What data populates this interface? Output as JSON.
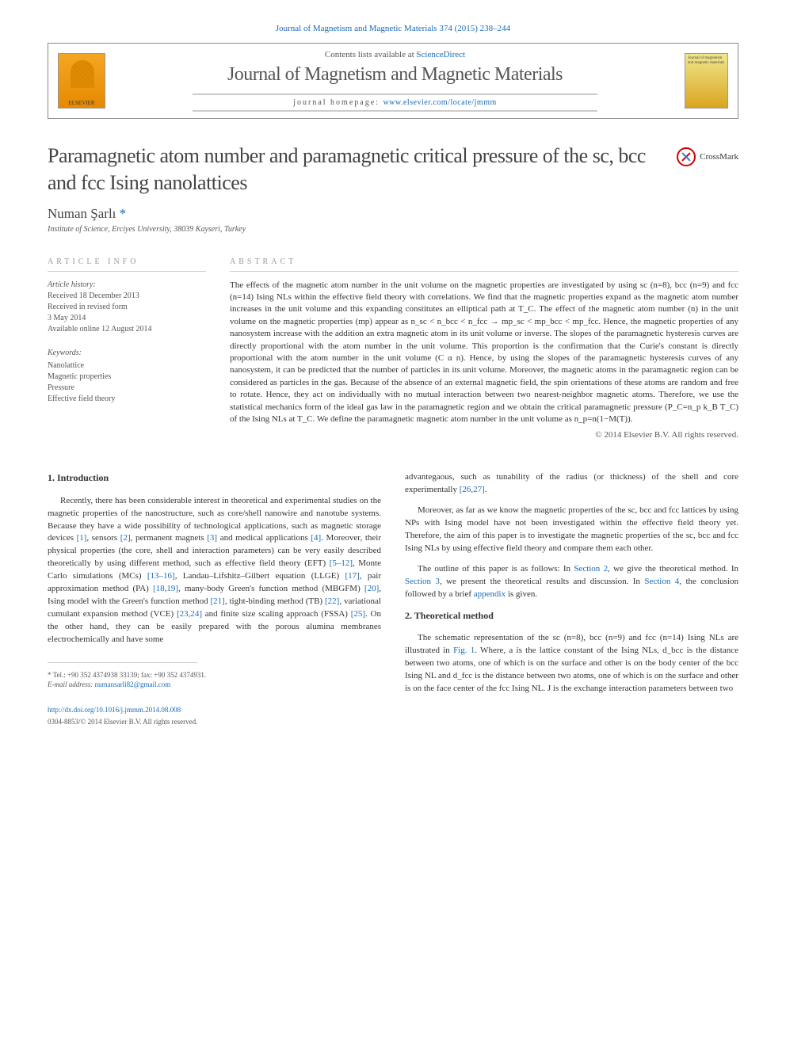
{
  "header": {
    "journal_ref": "Journal of Magnetism and Magnetic Materials 374 (2015) 238–244",
    "contents_prefix": "Contents lists available at ",
    "contents_link": "ScienceDirect",
    "journal_title": "Journal of Magnetism and Magnetic Materials",
    "homepage_prefix": "journal homepage: ",
    "homepage_link": "www.elsevier.com/locate/jmmm",
    "elsevier_label": "ELSEVIER",
    "cover_text": "Journal of magnetism and magnetic materials"
  },
  "article": {
    "title": "Paramagnetic atom number and paramagnetic critical pressure of the sc, bcc and fcc Ising nanolattices",
    "crossmark": "CrossMark",
    "author": "Numan Şarlı",
    "asterisk": "*",
    "affiliation": "Institute of Science, Erciyes University, 38039 Kayseri, Turkey"
  },
  "info": {
    "header": "ARTICLE INFO",
    "history_label": "Article history:",
    "received": "Received 18 December 2013",
    "revised1": "Received in revised form",
    "revised2": "3 May 2014",
    "online": "Available online 12 August 2014",
    "keywords_label": "Keywords:",
    "kw1": "Nanolattice",
    "kw2": "Magnetic properties",
    "kw3": "Pressure",
    "kw4": "Effective field theory"
  },
  "abstract": {
    "header": "ABSTRACT",
    "text": "The effects of the magnetic atom number in the unit volume on the magnetic properties are investigated by using sc (n=8), bcc (n=9) and fcc (n=14) Ising NLs within the effective field theory with correlations. We find that the magnetic properties expand as the magnetic atom number increases in the unit volume and this expanding constitutes an elliptical path at T_C. The effect of the magnetic atom number (n) in the unit volume on the magnetic properties (mp) appear as n_sc < n_bcc < n_fcc → mp_sc < mp_bcc < mp_fcc. Hence, the magnetic properties of any nanosystem increase with the addition an extra magnetic atom in its unit volume or inverse. The slopes of the paramagnetic hysteresis curves are directly proportional with the atom number in the unit volume. This proportion is the confirmation that the Curie's constant is directly proportional with the atom number in the unit volume (C α n). Hence, by using the slopes of the paramagnetic hysteresis curves of any nanosystem, it can be predicted that the number of particles in its unit volume. Moreover, the magnetic atoms in the paramagnetic region can be considered as particles in the gas. Because of the absence of an external magnetic field, the spin orientations of these atoms are random and free to rotate. Hence, they act on individually with no mutual interaction between two nearest-neighbor magnetic atoms. Therefore, we use the statistical mechanics form of the ideal gas law in the paramagnetic region and we obtain the critical paramagnetic pressure (P_C=n_p k_B T_C) of the Ising NLs at T_C. We define the paramagnetic magnetic atom number in the unit volume as n_p=n(1−M(T)).",
    "copyright": "© 2014 Elsevier B.V. All rights reserved."
  },
  "body": {
    "intro_heading": "1. Introduction",
    "intro_p1": "Recently, there has been considerable interest in theoretical and experimental studies on the magnetic properties of the nanostructure, such as core/shell nanowire and nanotube systems. Because they have a wide possibility of technological applications, such as magnetic storage devices [1], sensors [2], permanent magnets [3] and medical applications [4]. Moreover, their physical properties (the core, shell and interaction parameters) can be very easily described theoretically by using different method, such as effective field theory (EFT) [5–12], Monte Carlo simulations (MCs) [13–16], Landau–Lifshitz–Gilbert equation (LLGE) [17], pair approximation method (PA) [18,19], many-body Green's function method (MBGFM) [20], Ising model with the Green's function method [21], tight-binding method (TB) [22], variational cumulant expansion method (VCE) [23,24] and finite size scaling approach (FSSA) [25]. On the other hand, they can be easily prepared with the porous alumina membranes electrochemically and have some",
    "intro_p2_col2": "advantegaous, such as tunability of the radius (or thickness) of the shell and core experimentally [26,27].",
    "intro_p3_col2": "Moreover, as far as we know the magnetic properties of the sc, bcc and fcc lattices by using NPs with Ising model have not been investigated within the effective field theory yet. Therefore, the aim of this paper is to investigate the magnetic properties of the sc, bcc and fcc Ising NLs by using effective field theory and compare them each other.",
    "intro_p4_col2": "The outline of this paper is as follows: In Section 2, we give the theoretical method. In Section 3, we present the theoretical results and discussion. In Section 4, the conclusion followed by a brief appendix is given.",
    "method_heading": "2. Theoretical method",
    "method_p1": "The schematic representation of the sc (n=8), bcc (n=9) and fcc (n=14) Ising NLs are illustrated in Fig. 1. Where, a is the lattice constant of the Ising NLs, d_bcc is the distance between two atoms, one of which is on the surface and other is on the body center of the bcc Ising NL and d_fcc is the distance between two atoms, one of which is on the surface and other is on the face center of the fcc Ising NL. J is the exchange interaction parameters between two"
  },
  "footnote": {
    "tel": "* Tel.: +90 352 4374938 33139; fax: +90 352 4374931.",
    "email_label": "E-mail address: ",
    "email": "numansarli82@gmail.com",
    "doi": "http://dx.doi.org/10.1016/j.jmmm.2014.08.008",
    "issn": "0304-8853/© 2014 Elsevier B.V. All rights reserved."
  },
  "colors": {
    "link": "#1a6bb5",
    "text": "#333333",
    "muted": "#555555",
    "border": "#cccccc"
  }
}
